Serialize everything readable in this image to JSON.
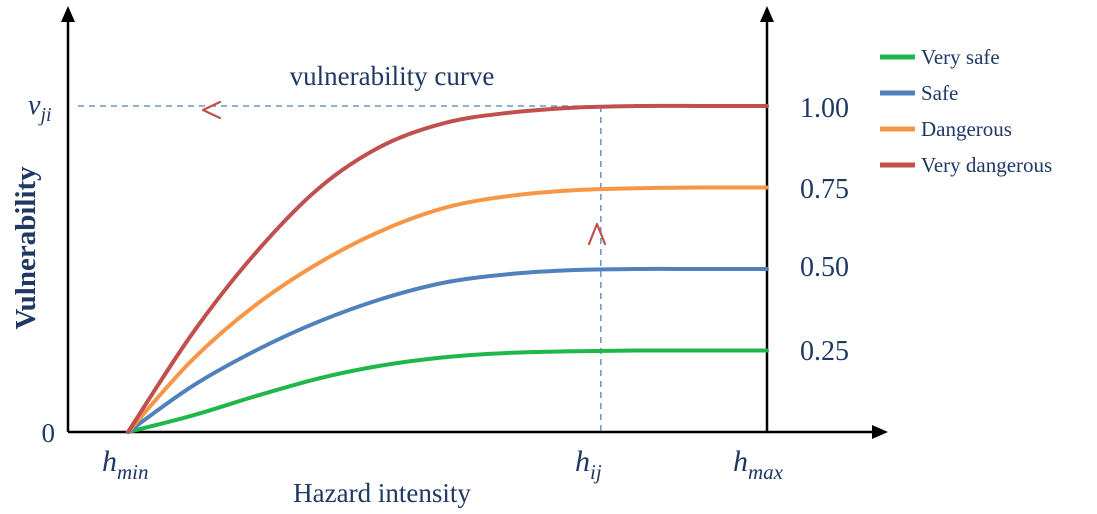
{
  "chart_data": {
    "type": "line",
    "title": "vulnerability curve",
    "xlabel": "Hazard intensity",
    "ylabel": "Vulnerability",
    "y_origin_label": "0",
    "x_ticks": {
      "min": {
        "base": "h",
        "sub": "min",
        "x": 0
      },
      "ij": {
        "base": "h",
        "sub": "ij",
        "x": 0.74
      },
      "max": {
        "base": "h",
        "sub": "max",
        "x": 1
      }
    },
    "v_ji": {
      "base": "v",
      "sub": "ji",
      "y": 1.0
    },
    "right_ticks": [
      "0.25",
      "0.50",
      "0.75",
      "1.00"
    ],
    "xlim": [
      0,
      1.18
    ],
    "ylim": [
      0,
      1.0
    ],
    "legend_position": "top-right",
    "series": [
      {
        "name": "Very safe",
        "color": "#1fb64a",
        "level": 0.25,
        "x": [
          0,
          0.1,
          0.2,
          0.3,
          0.4,
          0.5,
          0.6,
          0.7,
          0.8,
          0.9,
          1.0
        ],
        "y": [
          0,
          0.05,
          0.11,
          0.165,
          0.205,
          0.23,
          0.243,
          0.248,
          0.25,
          0.25,
          0.25
        ]
      },
      {
        "name": "Safe",
        "color": "#4f81bd",
        "level": 0.5,
        "x": [
          0,
          0.1,
          0.2,
          0.3,
          0.4,
          0.5,
          0.6,
          0.7,
          0.8,
          0.9,
          1.0
        ],
        "y": [
          0,
          0.14,
          0.25,
          0.34,
          0.41,
          0.46,
          0.485,
          0.497,
          0.5,
          0.5,
          0.5
        ]
      },
      {
        "name": "Dangerous",
        "color": "#f79646",
        "level": 0.75,
        "x": [
          0,
          0.1,
          0.2,
          0.3,
          0.4,
          0.5,
          0.6,
          0.7,
          0.8,
          0.9,
          1.0
        ],
        "y": [
          0,
          0.22,
          0.39,
          0.52,
          0.62,
          0.69,
          0.725,
          0.742,
          0.748,
          0.75,
          0.75
        ]
      },
      {
        "name": "Very dangerous",
        "color": "#c0504d",
        "level": 1.0,
        "x": [
          0,
          0.1,
          0.2,
          0.3,
          0.4,
          0.5,
          0.6,
          0.7,
          0.8,
          0.9,
          1.0
        ],
        "y": [
          0,
          0.3,
          0.55,
          0.75,
          0.88,
          0.95,
          0.98,
          0.995,
          1.0,
          1.0,
          1.0
        ]
      }
    ]
  }
}
